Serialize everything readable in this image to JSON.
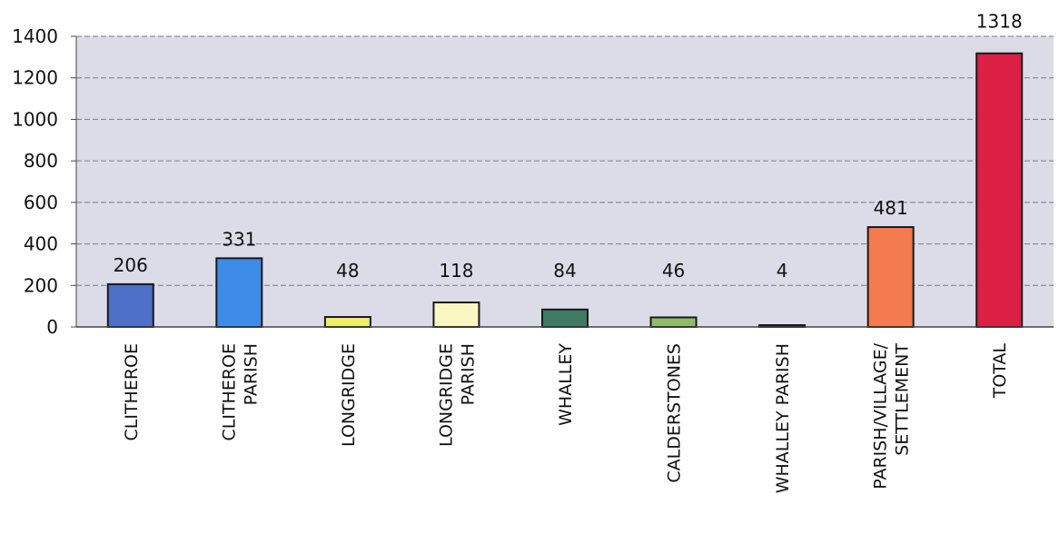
{
  "chart_data": {
    "type": "bar",
    "title": "",
    "xlabel": "",
    "ylabel": "",
    "ylim": [
      0,
      1400
    ],
    "yticks": [
      0,
      200,
      400,
      600,
      800,
      1000,
      1200,
      1400
    ],
    "grid": true,
    "plot_background": "#dcdbe8",
    "categories": [
      [
        "CLITHEROE"
      ],
      [
        "CLITHEROE",
        "PARISH"
      ],
      [
        "LONGRIDGE"
      ],
      [
        "LONGRIDGE",
        "PARISH"
      ],
      [
        "WHALLEY"
      ],
      [
        "CALDERSTONES"
      ],
      [
        "WHALLEY PARISH"
      ],
      [
        "PARISH/VILLAGE/",
        "SETTLEMENT"
      ],
      [
        "TOTAL"
      ]
    ],
    "values": [
      206,
      331,
      48,
      118,
      84,
      46,
      4,
      481,
      1318
    ],
    "colors": [
      "#4e6fc8",
      "#3d8ce8",
      "#f2ee6a",
      "#fbf7c2",
      "#3f7a62",
      "#8dbd6a",
      "#5e7d6a",
      "#f47a4f",
      "#dc1f45"
    ]
  }
}
